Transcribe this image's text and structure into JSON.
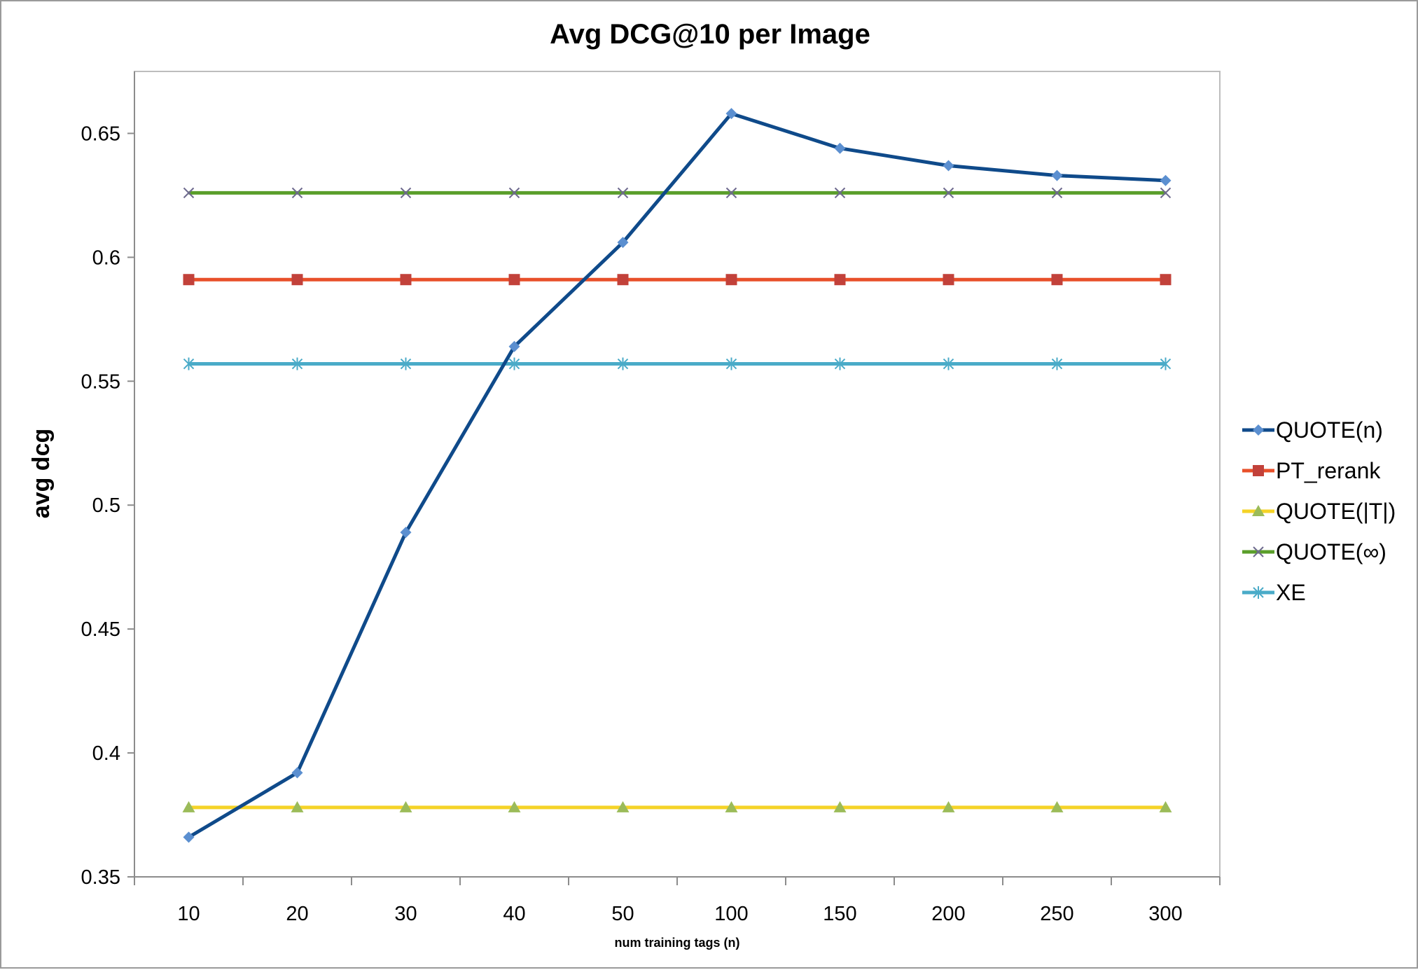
{
  "chart_data": {
    "type": "line",
    "title": "Avg DCG@10 per Image",
    "xlabel": "num training tags (n)",
    "ylabel": "avg dcg",
    "categories": [
      "10",
      "20",
      "30",
      "40",
      "50",
      "100",
      "150",
      "200",
      "250",
      "300"
    ],
    "ylim": [
      0.35,
      0.675
    ],
    "yticks": [
      "0.35",
      "0.4",
      "0.45",
      "0.5",
      "0.55",
      "0.6",
      "0.65"
    ],
    "grid": false,
    "legend_position": "right",
    "series": [
      {
        "name": "QUOTE(n)",
        "color": "#0f4a8a",
        "marker": "diamond",
        "marker_color": "#5b8fd0",
        "values": [
          0.366,
          0.392,
          0.489,
          0.564,
          0.606,
          0.658,
          0.644,
          0.637,
          0.633,
          0.631
        ]
      },
      {
        "name": "PT_rerank",
        "color": "#e8502a",
        "marker": "square",
        "marker_color": "#c2413a",
        "values": [
          0.591,
          0.591,
          0.591,
          0.591,
          0.591,
          0.591,
          0.591,
          0.591,
          0.591,
          0.591
        ]
      },
      {
        "name": "QUOTE(|T|)",
        "color": "#f5d327",
        "marker": "triangle",
        "marker_color": "#9bbb59",
        "values": [
          0.378,
          0.378,
          0.378,
          0.378,
          0.378,
          0.378,
          0.378,
          0.378,
          0.378,
          0.378
        ]
      },
      {
        "name": "QUOTE(∞)",
        "color": "#5a9e2a",
        "marker": "x",
        "marker_color": "#6e6a8e",
        "values": [
          0.626,
          0.626,
          0.626,
          0.626,
          0.626,
          0.626,
          0.626,
          0.626,
          0.626,
          0.626
        ]
      },
      {
        "name": "XE",
        "color": "#4aabc8",
        "marker": "star",
        "marker_color": "#4aabc8",
        "values": [
          0.557,
          0.557,
          0.557,
          0.557,
          0.557,
          0.557,
          0.557,
          0.557,
          0.557,
          0.557
        ]
      }
    ]
  }
}
